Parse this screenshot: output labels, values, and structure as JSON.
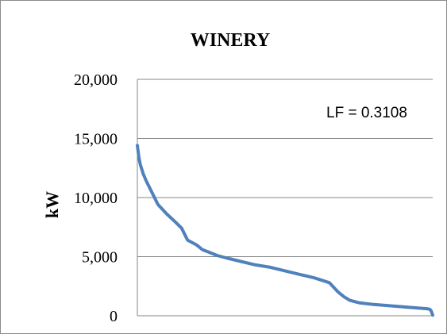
{
  "chart_data": {
    "type": "line",
    "title": "WINERY",
    "xlabel": "",
    "ylabel": "kW",
    "ylim": [
      0,
      20000
    ],
    "yticks": [
      "20,000",
      "15,000",
      "10,000",
      "5,000",
      "0"
    ],
    "ytick_values": [
      20000,
      15000,
      10000,
      5000,
      0
    ],
    "grid": "horizontal",
    "annotation": "LF = 0.3108",
    "line_color": "#4F81BD",
    "x": [
      0,
      0.5,
      1,
      2,
      3,
      5,
      7,
      10,
      13,
      15,
      17,
      20,
      21,
      22,
      23,
      24,
      25,
      27,
      30,
      35,
      40,
      45,
      50,
      55,
      60,
      65,
      68,
      70,
      72,
      75,
      80,
      85,
      90,
      95,
      98,
      99,
      99.5,
      100
    ],
    "series": [
      {
        "values": [
          14400,
          13400,
          12800,
          12000,
          11400,
          10400,
          9400,
          8600,
          7900,
          7400,
          6400,
          6000,
          5800,
          5600,
          5500,
          5400,
          5300,
          5100,
          4900,
          4600,
          4300,
          4100,
          3800,
          3500,
          3200,
          2800,
          2000,
          1600,
          1300,
          1100,
          950,
          850,
          750,
          650,
          600,
          550,
          400,
          50
        ]
      }
    ]
  }
}
